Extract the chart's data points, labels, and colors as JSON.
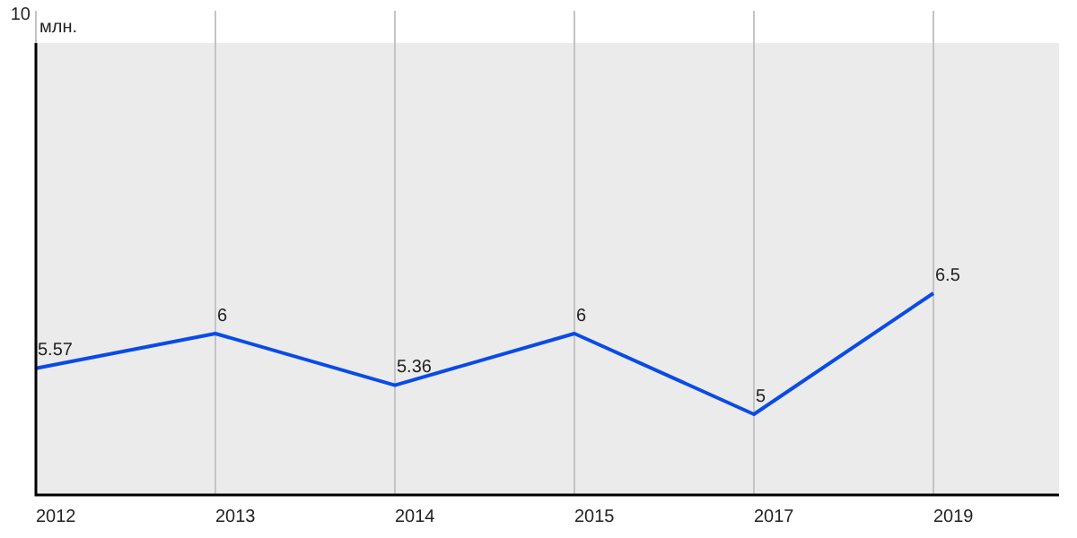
{
  "chart_data": {
    "type": "line",
    "ylabel": "млн.",
    "categories": [
      "2012",
      "2013",
      "2014",
      "2015",
      "2017",
      "2019"
    ],
    "series": [
      {
        "color": "#0a4be6",
        "values": [
          5.57,
          6,
          5.36,
          6,
          5,
          6.5
        ]
      }
    ],
    "ylim": [
      4,
      10
    ],
    "annotations": [
      "10"
    ],
    "grid": "x",
    "legend": false,
    "marker": "none",
    "line_style": "solid",
    "data_labels": true
  }
}
